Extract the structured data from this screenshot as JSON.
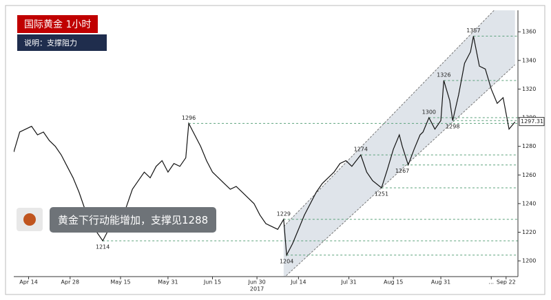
{
  "chart_data": {
    "type": "line",
    "badge": "国际黄金  1小时",
    "subtitle": "说明：支撑阻力",
    "note": "黄金下行动能增加，支撑见1288",
    "x": [
      99,
      101,
      103,
      105,
      107,
      109,
      111,
      113,
      115,
      117,
      119,
      121,
      123,
      125,
      127,
      129,
      131,
      133,
      135,
      137,
      139,
      141,
      143,
      145,
      147,
      149,
      151,
      153,
      155,
      157,
      158,
      160,
      162,
      164,
      166,
      168,
      170,
      172,
      174,
      176,
      178,
      180,
      182,
      184,
      186,
      188,
      190,
      191,
      193,
      195,
      197,
      199,
      201,
      203,
      205,
      207,
      209,
      211,
      213,
      216,
      218,
      220,
      223,
      225,
      227,
      229,
      230,
      232,
      234,
      236,
      237,
      239,
      241,
      243,
      244,
      246,
      247,
      249,
      251,
      253,
      254,
      256,
      258,
      260,
      262,
      264,
      266,
      268
    ],
    "values": [
      1276,
      1290,
      1292,
      1294,
      1288,
      1290,
      1284,
      1280,
      1274,
      1266,
      1258,
      1248,
      1236,
      1228,
      1220,
      1214,
      1222,
      1232,
      1228,
      1238,
      1250,
      1256,
      1262,
      1258,
      1266,
      1270,
      1262,
      1268,
      1266,
      1272,
      1296,
      1288,
      1280,
      1270,
      1262,
      1258,
      1254,
      1250,
      1252,
      1248,
      1244,
      1240,
      1232,
      1226,
      1224,
      1222,
      1229,
      1204,
      1212,
      1222,
      1232,
      1240,
      1248,
      1254,
      1258,
      1262,
      1268,
      1270,
      1266,
      1274,
      1262,
      1256,
      1251,
      1264,
      1278,
      1288,
      1280,
      1267,
      1278,
      1288,
      1290,
      1300,
      1292,
      1298,
      1326,
      1312,
      1298,
      1316,
      1338,
      1346,
      1357,
      1336,
      1334,
      1320,
      1310,
      1314,
      1292,
      1297
    ],
    "color": "#111111",
    "last_price": 1297.31,
    "annotations": [
      {
        "x": 254,
        "value": 1357
      },
      {
        "x": 244,
        "value": 1326
      },
      {
        "x": 239,
        "value": 1300
      },
      {
        "x": 247,
        "value": 1298
      },
      {
        "x": 216,
        "value": 1274
      },
      {
        "x": 230,
        "value": 1267
      },
      {
        "x": 223,
        "value": 1251
      },
      {
        "x": 190,
        "value": 1229
      },
      {
        "x": 129,
        "value": 1214
      },
      {
        "x": 191,
        "value": 1204
      },
      {
        "x": 158,
        "value": 1296
      }
    ],
    "channel": [
      [
        [
          190,
          1188
        ],
        [
          268,
          1337
        ]
      ],
      [
        [
          190,
          1224
        ],
        [
          268,
          1390
        ]
      ]
    ],
    "xlim": [
      99,
      269
    ],
    "xticks": [
      {
        "value": 104,
        "label": "Apr 14"
      },
      {
        "value": 118,
        "label": "Apr 28"
      },
      {
        "value": 135,
        "label": "May 15"
      },
      {
        "value": 151,
        "label": "May 31"
      },
      {
        "value": 166,
        "label": "Jun 15"
      },
      {
        "value": 181,
        "label": "Jun 30"
      },
      {
        "value": 195,
        "label": "Jul 14"
      },
      {
        "value": 212,
        "label": "Jul 31"
      },
      {
        "value": 227,
        "label": "Aug 15"
      },
      {
        "value": 243,
        "label": "Aug 31"
      },
      {
        "value": 260,
        "label": "..."
      },
      {
        "value": 265,
        "label": "Sep 22"
      }
    ],
    "year_label": {
      "value": 181,
      "label": "2017"
    },
    "ylim": [
      1189,
      1375
    ],
    "yticks": [
      1200,
      1220,
      1240,
      1260,
      1280,
      1300,
      1320,
      1340,
      1360
    ]
  }
}
